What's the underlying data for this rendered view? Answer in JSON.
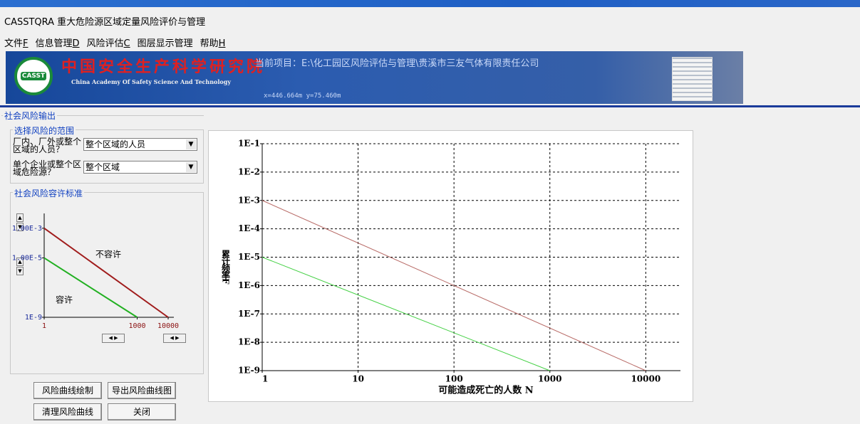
{
  "window": {
    "title": "CASSTQRA 重大危险源区域定量风险评价与管理"
  },
  "menu": [
    {
      "label": "文件",
      "key": "F"
    },
    {
      "label": "信息管理",
      "key": "D"
    },
    {
      "label": "风险评估",
      "key": "C"
    },
    {
      "label": "图层显示管理"
    },
    {
      "label": "帮助",
      "key": "H"
    }
  ],
  "header": {
    "logo": "CASST",
    "name_cn": "中国安全生产科学研究院",
    "name_en": "China Academy Of Safety Science And Technology",
    "project": "当前项目：E:\\化工园区风险评估与管理\\贵溪市三友气体有限责任公司",
    "coordinates": "x=446.664m  y=75.460m"
  },
  "panel": {
    "title": "社会风险输出",
    "scope": {
      "title": "选择风险的范围",
      "fields": [
        {
          "label": "厂内、厂外或整个区域的人员？",
          "value": "整个区域的人员"
        },
        {
          "label": "单个企业或整个区域危险源？",
          "value": "整个区域"
        }
      ]
    },
    "criteria": {
      "title": "社会风险容许标准"
    },
    "buttons": [
      "风险曲线绘制",
      "导出风险曲线图",
      "清理风险曲线",
      "关闭"
    ]
  },
  "chart_data": [
    {
      "type": "line",
      "x_label": "可能造成死亡的人数 N",
      "y_label": "累计频率F",
      "log_x": true,
      "log_y": true,
      "grid": true,
      "xlim": [
        1,
        23000
      ],
      "ylim": [
        1e-09,
        0.1
      ],
      "xticks": [
        1,
        10,
        100,
        1000,
        10000
      ],
      "yticks": [
        {
          "value": 0.1,
          "label": "1E-1"
        },
        {
          "value": 0.01,
          "label": "1E-2"
        },
        {
          "value": 0.001,
          "label": "1E-3"
        },
        {
          "value": 0.0001,
          "label": "1E-4"
        },
        {
          "value": 1e-05,
          "label": "1E-5"
        },
        {
          "value": 1e-06,
          "label": "1E-6"
        },
        {
          "value": 1e-07,
          "label": "1E-7"
        },
        {
          "value": 1e-08,
          "label": "1E-8"
        },
        {
          "value": 1e-09,
          "label": "1E-9"
        }
      ],
      "series": [
        {
          "color": "#b86a66",
          "x": [
            1,
            10000
          ],
          "values": [
            0.001,
            1e-09
          ]
        },
        {
          "color": "#44d044",
          "x": [
            1,
            1000
          ],
          "values": [
            1e-05,
            1e-09
          ]
        }
      ]
    },
    {
      "type": "line",
      "annotations": [
        "不容许",
        "容许"
      ],
      "log_x": true,
      "log_y": true,
      "grid": false,
      "xlim": [
        1,
        10000
      ],
      "ylim": [
        1e-09,
        0.01
      ],
      "xticks": [
        1,
        1000,
        10000
      ],
      "yticks": [
        {
          "value": 0.001,
          "label": "1.00E-3"
        },
        {
          "value": 1e-05,
          "label": "1.00E-5"
        },
        {
          "value": 1e-09,
          "label": "1E-9"
        }
      ],
      "series": [
        {
          "color": "#a01c1c",
          "x": [
            1,
            10000
          ],
          "values": [
            0.001,
            1e-09
          ]
        },
        {
          "color": "#22b022",
          "x": [
            1,
            1000
          ],
          "values": [
            1e-05,
            1e-09
          ]
        }
      ]
    }
  ]
}
